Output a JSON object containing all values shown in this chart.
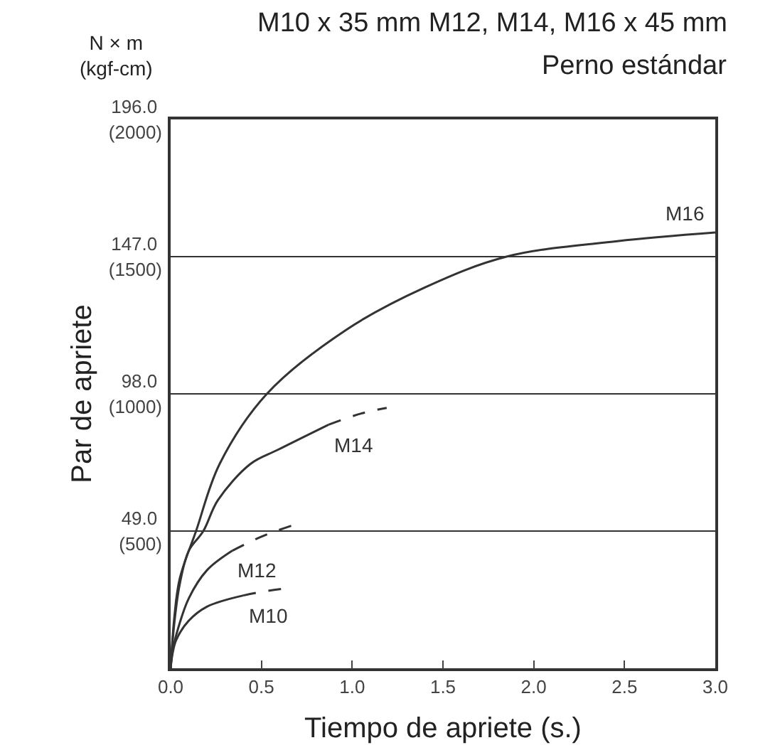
{
  "chart_data": {
    "type": "line",
    "title": "M10 x 35 mm M12, M14, M16 x 45 mm",
    "subtitle": "Perno estándar",
    "xlabel": "Tiempo de apriete (s.)",
    "ylabel": "Par de apriete",
    "xlim": [
      0,
      3.0
    ],
    "ylim": [
      0,
      196
    ],
    "xticks": [
      {
        "value": 0,
        "label": "0.0"
      },
      0.5,
      {
        "value": 1.0,
        "label": "1.0"
      },
      1.5,
      {
        "value": 2.0,
        "label": "2.0"
      },
      2.5,
      {
        "value": 3.0,
        "label": "3.0"
      }
    ],
    "yticks": [
      {
        "value": 49,
        "label": "49.0"
      },
      {
        "value": 98,
        "label": "98.0"
      },
      {
        "value": 147,
        "label": "147.0"
      },
      {
        "value": 196,
        "label": "196.0"
      }
    ],
    "y2lim": [
      0,
      2000
    ],
    "y2ticks": [
      {
        "value": 500,
        "label": "(500)"
      },
      {
        "value": 1000,
        "label": "(1000)"
      },
      {
        "value": 1500,
        "label": "(1500)"
      },
      {
        "value": 2000,
        "label": "(2000)"
      }
    ],
    "grid": "y",
    "marker": "none",
    "series": [
      {
        "color": "#333333",
        "line_style": "solid",
        "x": [
          0,
          0.02,
          0.05,
          0.14,
          0.27,
          0.53,
          0.97,
          1.4,
          1.85,
          2.46,
          3.0
        ],
        "values": [
          0,
          18,
          32,
          49,
          73,
          98,
          121,
          136,
          147,
          152.5,
          155.6
        ]
      },
      {
        "color": "#333333",
        "line_style": "solid",
        "x": [
          0,
          0.02,
          0.05,
          0.1,
          0.18,
          0.26,
          0.44,
          0.59,
          0.87
        ],
        "values": [
          0,
          16,
          30,
          42,
          49,
          60,
          73,
          78,
          87
        ]
      },
      {
        "color": "#333333",
        "line_style": "dashed",
        "x": [
          0.87,
          1.05,
          1.19
        ],
        "values": [
          87,
          91,
          93
        ]
      },
      {
        "color": "#333333",
        "line_style": "solid",
        "x": [
          0,
          0.01,
          0.04,
          0.1,
          0.2,
          0.34
        ],
        "values": [
          0,
          6,
          14,
          25,
          35,
          42
        ]
      },
      {
        "color": "#333333",
        "line_style": "dashed",
        "x": [
          0.34,
          0.5,
          0.67
        ],
        "values": [
          42,
          47,
          51
        ]
      },
      {
        "color": "#333333",
        "line_style": "solid",
        "x": [
          0,
          0.01,
          0.03,
          0.1,
          0.2,
          0.4
        ],
        "values": [
          0,
          5,
          10,
          17,
          22,
          26
        ]
      },
      {
        "color": "#333333",
        "line_style": "dashed",
        "x": [
          0.4,
          0.52,
          0.63
        ],
        "values": [
          26,
          27.5,
          28.5
        ]
      }
    ],
    "annotations": [
      "N × m\n(kgf-cm)",
      {
        "text": "M16",
        "x": 3.0,
        "y": 155.6
      },
      {
        "text": "M14",
        "x": 0.87,
        "y": 87
      },
      {
        "text": "M12",
        "x": 0.34,
        "y": 42
      },
      {
        "text": "M10",
        "x": 0.4,
        "y": 26
      }
    ]
  }
}
